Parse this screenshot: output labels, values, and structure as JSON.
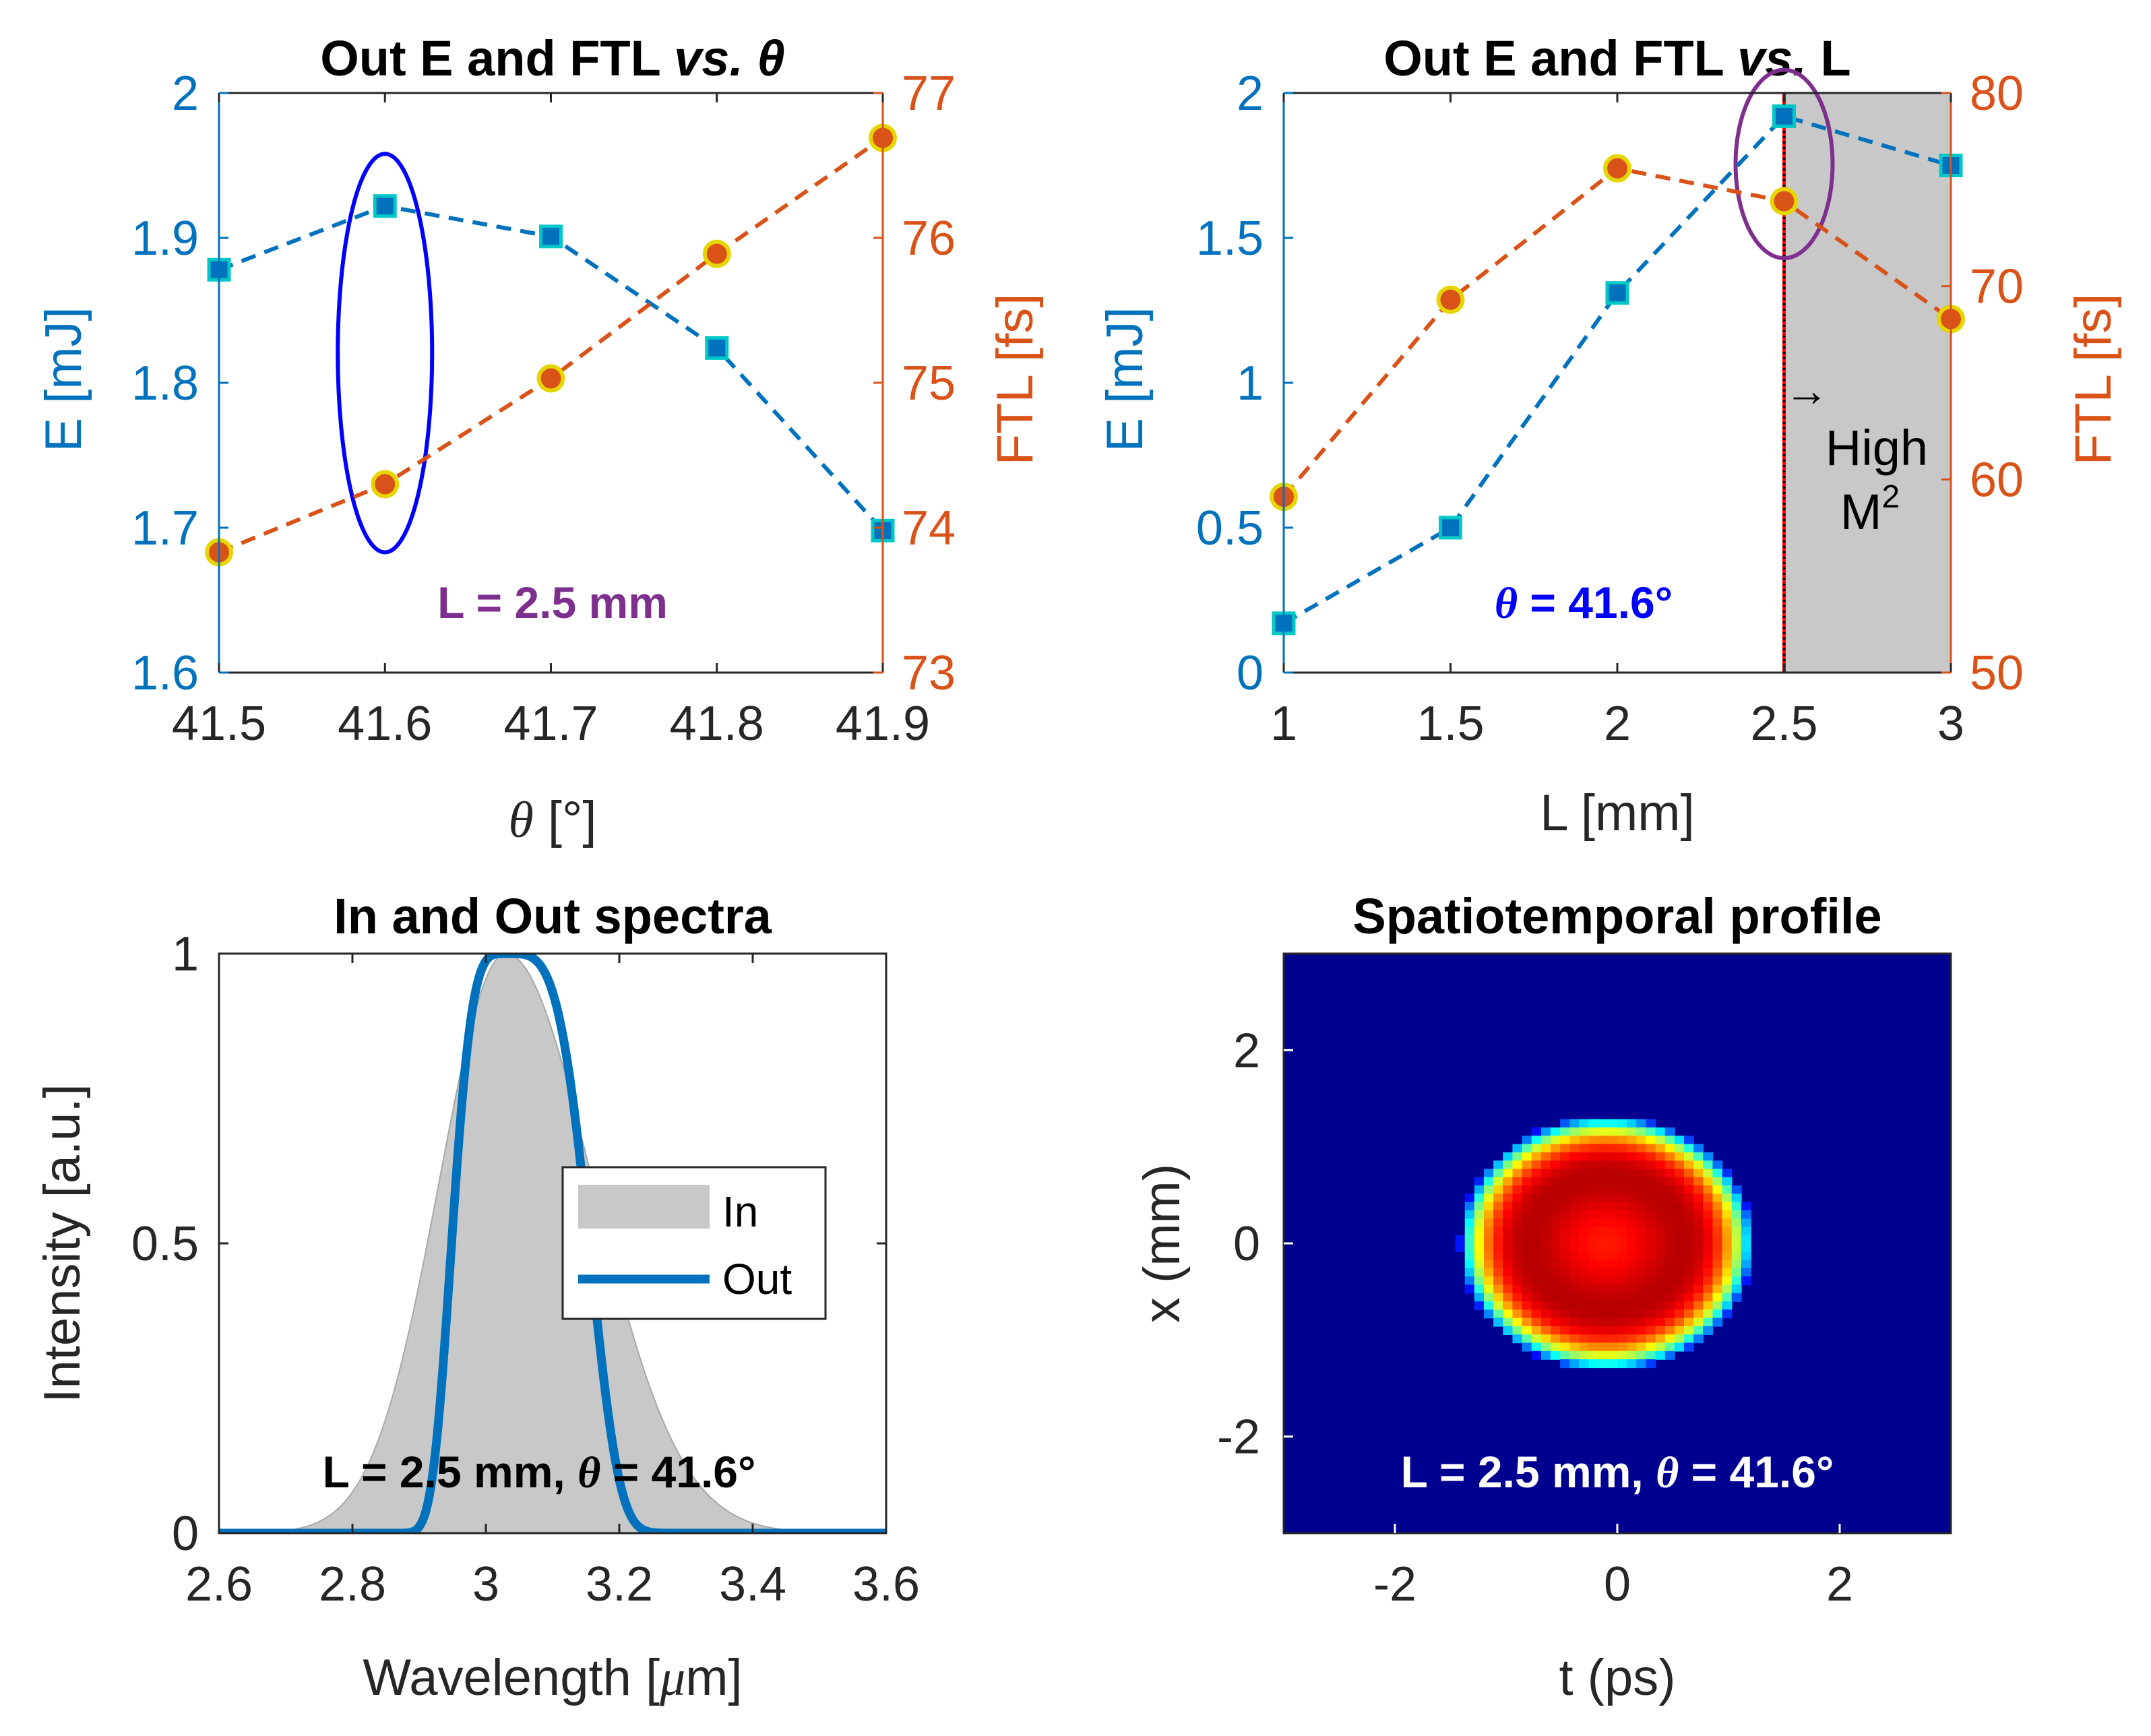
{
  "colors": {
    "energy": "#0072BD",
    "ftl": "#D95319",
    "ellipse_theta": "#0000FF",
    "ellipse_L": "#7E2F8E",
    "annot_L": "#7E2F8E",
    "annot_theta": "#0000FF",
    "marker_edge": "#E6D600",
    "square_edge": "#00C8C8",
    "shade": "#C8C8C8",
    "vline": "#FF0000",
    "text": "#000000",
    "axis": "#262626",
    "heat_bg": "#000090"
  },
  "chart_data": [
    {
      "id": "panel-a",
      "type": "line",
      "title": "Out E and FTL vs. θ",
      "title_main": "Out E and FTL ",
      "title_em": "vs. θ",
      "xlabel_sym": "θ",
      "xlabel_rest": " [°]",
      "ylabel_left": "E [mJ]",
      "ylabel_right": "FTL [fs]",
      "x": [
        41.5,
        41.6,
        41.7,
        41.8,
        41.9
      ],
      "xlim": [
        41.5,
        41.9
      ],
      "xticks": [
        41.5,
        41.6,
        41.7,
        41.8,
        41.9
      ],
      "xtick_labels": [
        "41.5",
        "41.6",
        "41.7",
        "41.8",
        "41.9"
      ],
      "ylim_left": [
        1.6,
        2.0
      ],
      "yticks_left": [
        1.6,
        1.7,
        1.8,
        1.9,
        2.0
      ],
      "ytick_labels_left": [
        "1.6",
        "1.7",
        "1.8",
        "1.9",
        "2"
      ],
      "ylim_right": [
        73,
        77
      ],
      "yticks_right": [
        73,
        74,
        75,
        76,
        77
      ],
      "ytick_labels_right": [
        "73",
        "74",
        "75",
        "76",
        "77"
      ],
      "series": [
        {
          "name": "E",
          "axis": "left",
          "marker": "square",
          "values": [
            1.878,
            1.922,
            1.901,
            1.824,
            1.698
          ]
        },
        {
          "name": "FTL",
          "axis": "right",
          "marker": "circle",
          "values": [
            73.83,
            74.3,
            75.03,
            75.89,
            76.69
          ]
        }
      ],
      "highlight": {
        "x": 41.6,
        "ylow": 1.683,
        "yhigh": 1.958
      },
      "annotation": "L = 2.5 mm"
    },
    {
      "id": "panel-b",
      "type": "line",
      "title": "Out E and FTL vs. L",
      "title_main": "Out E and FTL ",
      "title_em": "vs.",
      "title_tail": " L",
      "xlabel": "L [mm]",
      "ylabel_left": "E [mJ]",
      "ylabel_right": "FTL [fs]",
      "x": [
        1,
        1.5,
        2,
        2.5,
        3
      ],
      "xlim": [
        1,
        3
      ],
      "xticks": [
        1,
        1.5,
        2,
        2.5,
        3
      ],
      "xtick_labels": [
        "1",
        "1.5",
        "2",
        "2.5",
        "3"
      ],
      "ylim_left": [
        0,
        2
      ],
      "yticks_left": [
        0,
        0.5,
        1,
        1.5,
        2
      ],
      "ytick_labels_left": [
        "0",
        "0.5",
        "1",
        "1.5",
        "2"
      ],
      "ylim_right": [
        50,
        80
      ],
      "yticks_right": [
        50,
        60,
        70,
        80
      ],
      "ytick_labels_right": [
        "50",
        "60",
        "70",
        "80"
      ],
      "series": [
        {
          "name": "E",
          "axis": "left",
          "marker": "square",
          "values": [
            0.17,
            0.5,
            1.31,
            1.92,
            1.75
          ]
        },
        {
          "name": "FTL",
          "axis": "right",
          "marker": "circle",
          "values": [
            59.1,
            69.3,
            76.1,
            74.4,
            68.3
          ]
        }
      ],
      "shaded_region": [
        2.5,
        3
      ],
      "vline": 2.5,
      "highlight": {
        "x": 2.5,
        "ylow": 1.43,
        "yhigh": 2.08
      },
      "region_arrow": "→",
      "region_label_1": "High",
      "region_label_2": "M",
      "region_label_sup": "2",
      "annotation_sym": "θ",
      "annotation_rest": " = 41.6°"
    },
    {
      "id": "panel-c",
      "type": "area",
      "title": "In and Out spectra",
      "xlabel_main": "Wavelength [",
      "xlabel_sym": "μ",
      "xlabel_tail": "m]",
      "ylabel": "Intensity [a.u.]",
      "xlim": [
        2.6,
        3.6
      ],
      "xticks": [
        2.6,
        2.8,
        3.0,
        3.2,
        3.4,
        3.6
      ],
      "xtick_labels": [
        "2.6",
        "2.8",
        "3",
        "3.2",
        "3.4",
        "3.6"
      ],
      "ylim": [
        0,
        1
      ],
      "yticks": [
        0,
        0.5,
        1
      ],
      "ytick_labels": [
        "0",
        "0.5",
        "1"
      ],
      "series": [
        {
          "name": "In",
          "style": "filled",
          "center": 3.03,
          "peak": 1.0,
          "sigma_left": 0.1,
          "sigma_right": 0.13
        },
        {
          "name": "Out",
          "style": "line",
          "center": 3.03,
          "peak": 1.0,
          "sigma_left": 0.075,
          "sigma_right": 0.115,
          "super_gauss_order": 4
        }
      ],
      "legend": [
        "In",
        "Out"
      ],
      "legend_position": "right-middle",
      "annotation_main": "L = 2.5 mm, ",
      "annotation_sym": "θ",
      "annotation_tail": " = 41.6°"
    },
    {
      "id": "panel-d",
      "type": "heatmap",
      "title": "Spatiotemporal profile",
      "xlabel": "t (ps)",
      "ylabel": "x (mm)",
      "xlim": [
        -3,
        3
      ],
      "ylim": [
        -3,
        3
      ],
      "xticks": [
        -2,
        0,
        2
      ],
      "xtick_labels": [
        "-2",
        "0",
        "2"
      ],
      "yticks": [
        -2,
        0,
        2
      ],
      "ytick_labels": [
        "-2",
        "0",
        "2"
      ],
      "colormap": "jet",
      "beam": {
        "center_t": -0.1,
        "center_x": 0,
        "radius_t": 1.32,
        "radius_x": 1.32,
        "ring_radius": 0.8,
        "center_level": 0.83
      },
      "annotation_main": "L = 2.5 mm, ",
      "annotation_sym": "θ",
      "annotation_tail": " = 41.6°"
    }
  ]
}
